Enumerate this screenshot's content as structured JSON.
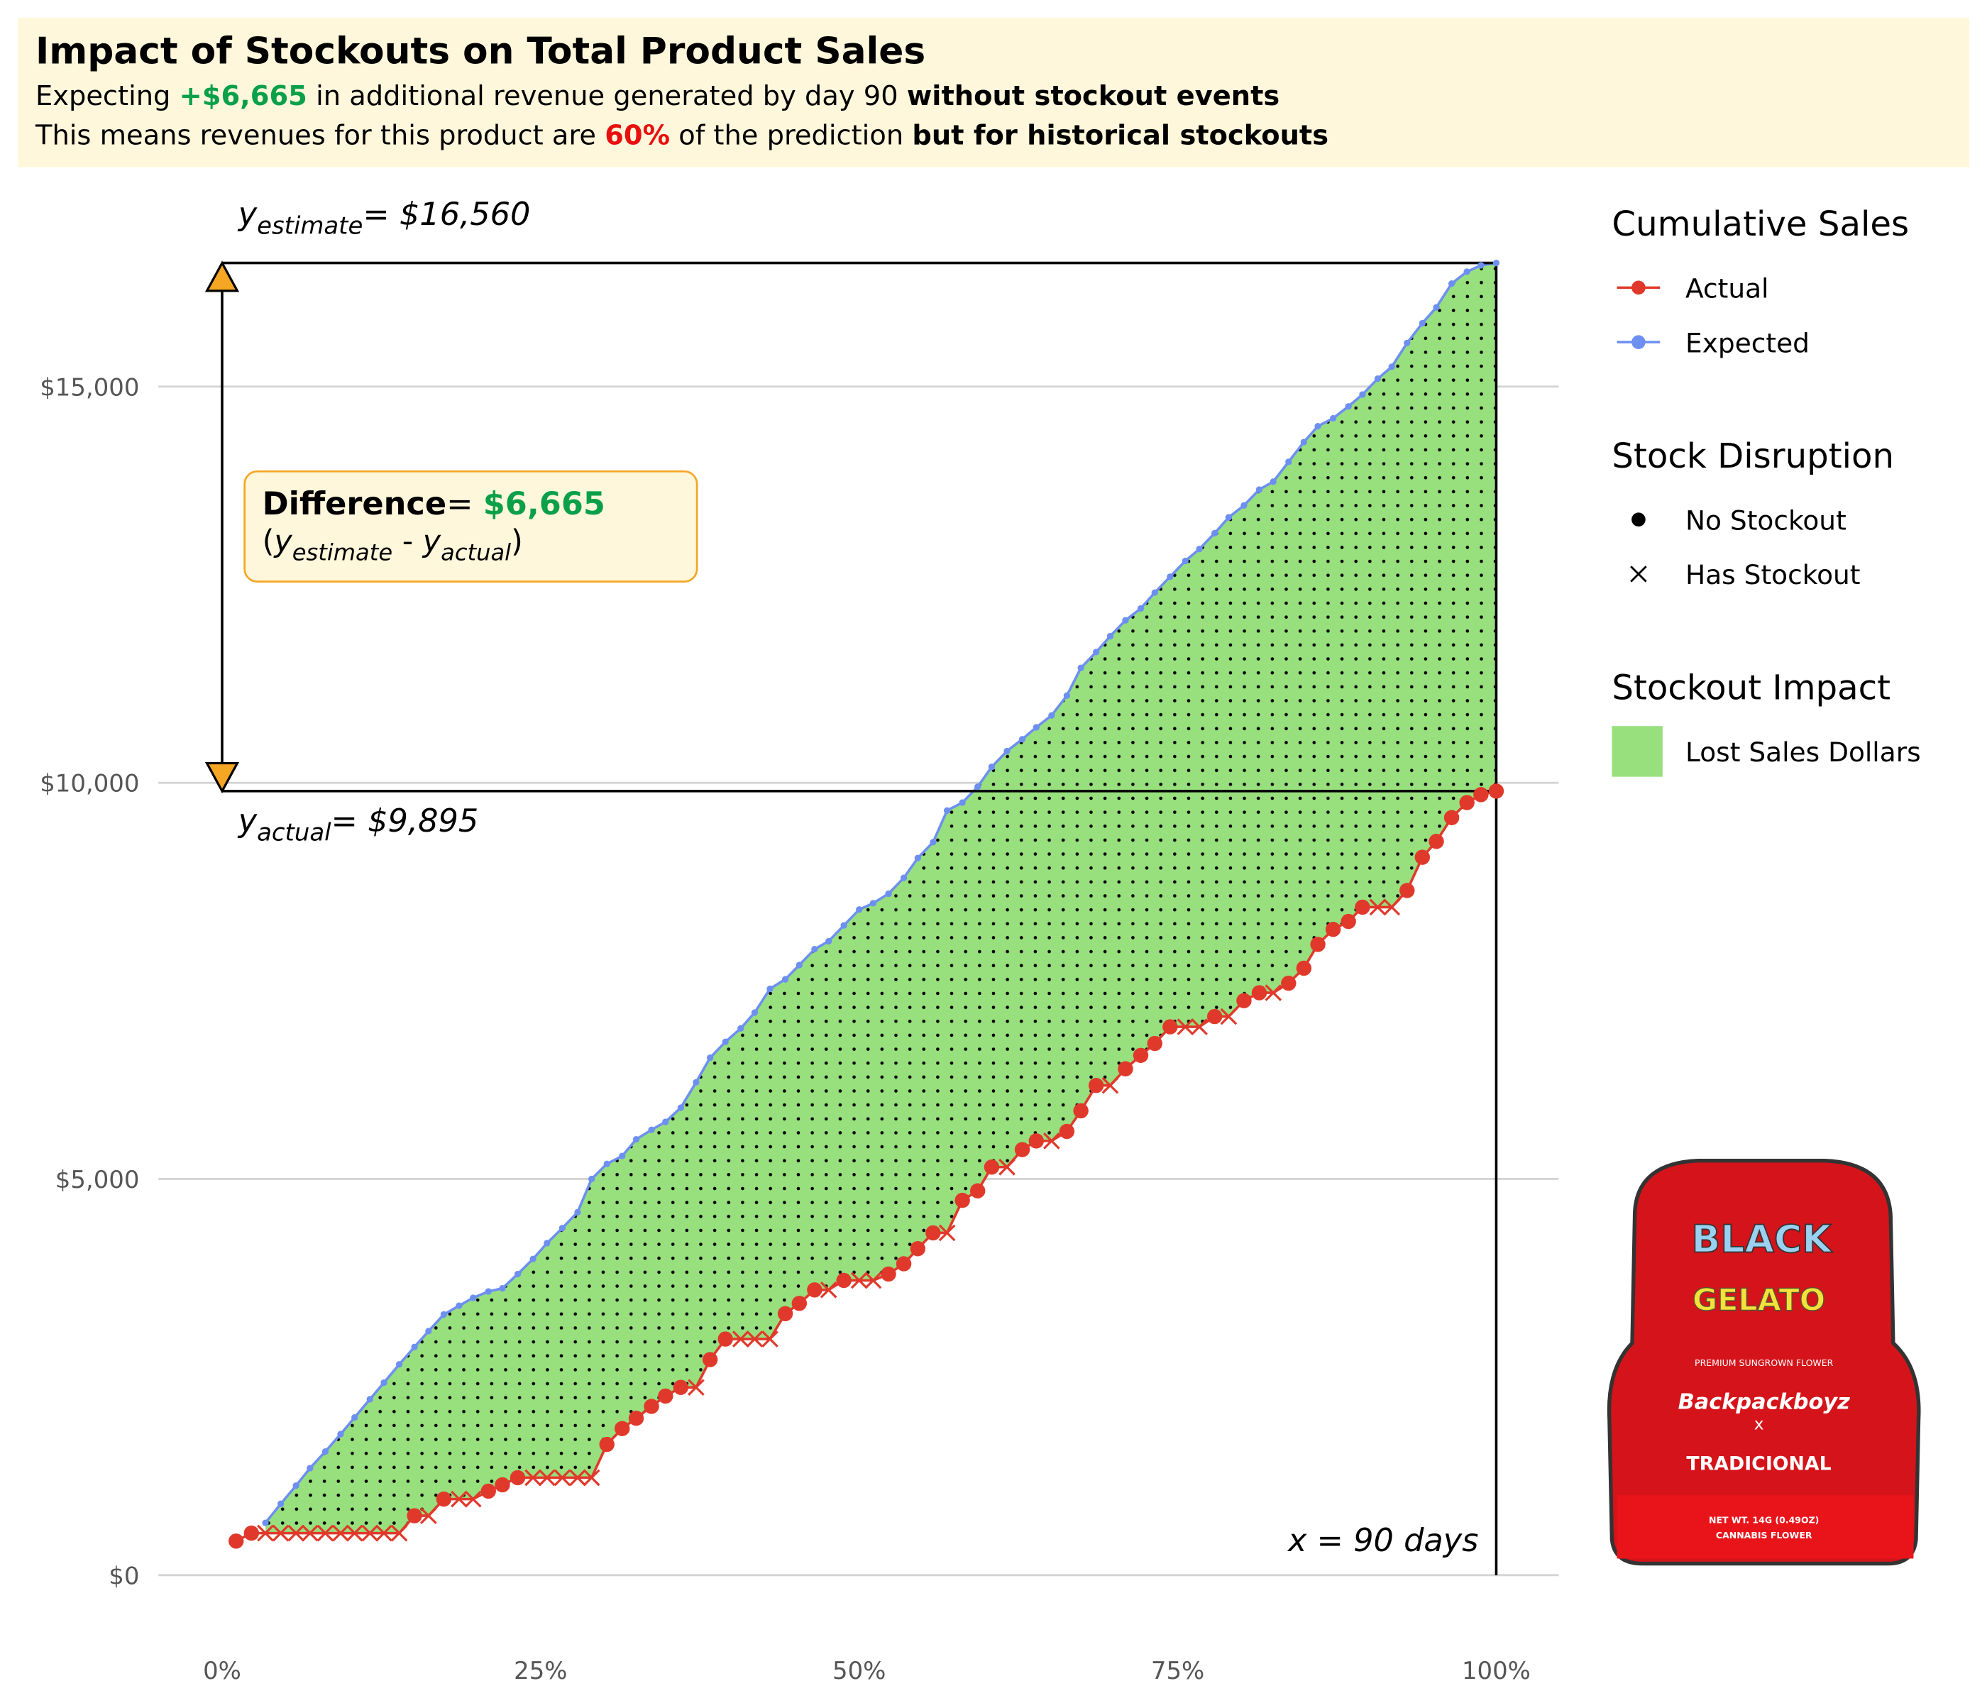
{
  "header": {
    "title": "Impact of Stockouts on Total Product Sales",
    "lines": [
      [
        "Expecting ",
        "+$6,665",
        " in additional revenue generated by day 90 ",
        "without stockout events"
      ],
      [
        "This means revenues for this product are ",
        "60%",
        " of the prediction ",
        "but for historical stockouts"
      ]
    ]
  },
  "chart_data": {
    "type": "line",
    "x": [
      1.1,
      2.3,
      3.4,
      4.6,
      5.8,
      6.9,
      8.1,
      9.3,
      10.4,
      11.6,
      12.7,
      13.9,
      15.1,
      16.2,
      17.4,
      18.6,
      19.7,
      20.9,
      22.0,
      23.2,
      24.4,
      25.5,
      26.7,
      27.9,
      29.0,
      30.2,
      31.4,
      32.5,
      33.7,
      34.8,
      36.0,
      37.2,
      38.3,
      39.5,
      40.7,
      41.8,
      43.0,
      44.2,
      45.3,
      46.5,
      47.6,
      48.8,
      50.0,
      51.1,
      52.3,
      53.5,
      54.6,
      55.8,
      56.9,
      58.1,
      59.3,
      60.4,
      61.6,
      62.8,
      63.9,
      65.1,
      66.3,
      67.4,
      68.6,
      69.7,
      70.9,
      72.1,
      73.2,
      74.4,
      75.6,
      76.7,
      77.9,
      79.0,
      80.2,
      81.4,
      82.5,
      83.7,
      84.9,
      86.0,
      87.2,
      88.4,
      89.5,
      90.7,
      91.8,
      93.0,
      94.2,
      95.3,
      96.5,
      97.7,
      98.8,
      100
    ],
    "series": [
      {
        "name": "Actual",
        "color": "#e0392b",
        "values": [
          430,
          530,
          530,
          530,
          530,
          530,
          530,
          530,
          530,
          530,
          530,
          530,
          750,
          750,
          960,
          960,
          960,
          1060,
          1140,
          1230,
          1230,
          1230,
          1230,
          1230,
          1230,
          1650,
          1850,
          1980,
          2130,
          2260,
          2370,
          2370,
          2720,
          2980,
          2980,
          2980,
          2980,
          3300,
          3430,
          3600,
          3600,
          3720,
          3720,
          3720,
          3800,
          3930,
          4120,
          4320,
          4320,
          4730,
          4850,
          5150,
          5150,
          5370,
          5480,
          5480,
          5600,
          5860,
          6180,
          6180,
          6390,
          6560,
          6710,
          6920,
          6920,
          6920,
          7050,
          7050,
          7250,
          7350,
          7350,
          7470,
          7660,
          7960,
          8150,
          8250,
          8430,
          8430,
          8430,
          8640,
          9060,
          9260,
          9560,
          9750,
          9850,
          9895
        ]
      },
      {
        "name": "Expected",
        "color": "#6d8ff2",
        "values": [
          null,
          null,
          660,
          900,
          1130,
          1350,
          1560,
          1780,
          1990,
          2220,
          2430,
          2660,
          2880,
          3080,
          3290,
          3400,
          3500,
          3580,
          3620,
          3800,
          3990,
          4190,
          4380,
          4580,
          5000,
          5190,
          5290,
          5500,
          5620,
          5720,
          5900,
          6220,
          6530,
          6730,
          6900,
          7100,
          7400,
          7520,
          7700,
          7900,
          8000,
          8200,
          8400,
          8480,
          8600,
          8800,
          9050,
          9250,
          9650,
          9750,
          9950,
          10200,
          10400,
          10550,
          10700,
          10850,
          11100,
          11450,
          11650,
          11850,
          12050,
          12200,
          12400,
          12600,
          12800,
          12950,
          13150,
          13350,
          13500,
          13700,
          13800,
          14050,
          14300,
          14500,
          14600,
          14750,
          14900,
          15100,
          15250,
          15550,
          15800,
          16000,
          16300,
          16450,
          16530,
          16560
        ]
      }
    ],
    "stockout": [
      false,
      false,
      true,
      true,
      true,
      true,
      true,
      true,
      true,
      true,
      true,
      true,
      false,
      true,
      false,
      true,
      true,
      false,
      false,
      false,
      true,
      true,
      true,
      true,
      true,
      false,
      false,
      false,
      false,
      false,
      false,
      true,
      false,
      false,
      true,
      true,
      true,
      false,
      false,
      false,
      true,
      false,
      true,
      true,
      false,
      false,
      false,
      false,
      true,
      false,
      false,
      false,
      true,
      false,
      false,
      true,
      false,
      false,
      false,
      true,
      false,
      false,
      false,
      false,
      true,
      true,
      false,
      true,
      false,
      false,
      true,
      false,
      false,
      false,
      false,
      false,
      false,
      true,
      true,
      false,
      false,
      false,
      false,
      false,
      false,
      false
    ],
    "xlim": [
      -5,
      104.9
    ],
    "xticks": [
      {
        "value": 0,
        "label": "0%"
      },
      {
        "value": 25,
        "label": "25%"
      },
      {
        "value": 50,
        "label": "50%"
      },
      {
        "value": 75,
        "label": "75%"
      },
      {
        "value": 100,
        "label": "100%"
      }
    ],
    "ylim": [
      -750,
      17560
    ],
    "yticks": [
      {
        "value": 0,
        "label": "$0"
      },
      {
        "value": 5000,
        "label": "$5,000"
      },
      {
        "value": 10000,
        "label": "$10,000"
      },
      {
        "value": 15000,
        "label": "$15,000"
      }
    ],
    "grid": true,
    "area": {
      "name": "Lost Sales Dollars",
      "color": "#98e07e"
    },
    "legend": {
      "position": "right",
      "groups": [
        {
          "title": "Cumulative Sales"
        },
        {
          "title": "Stock Disruption",
          "entries": [
            "No Stockout",
            "Has Stockout"
          ]
        },
        {
          "title": "Stockout Impact"
        }
      ]
    },
    "annotations": {
      "estimate": {
        "value": 16560,
        "y": "y",
        "sub": "estimate",
        "text": "= $16,560"
      },
      "actual": {
        "value": 9895,
        "y": "y",
        "sub": "actual",
        "text": "= $9,895"
      },
      "x_line": {
        "value": 100,
        "text": "x = 90 days"
      },
      "difference": {
        "label": "Difference",
        "text": "= ",
        "amount": "$6,665",
        "formula": [
          "(",
          "y",
          "estimate",
          " - ",
          "y",
          "actual",
          ")"
        ]
      }
    }
  },
  "product_image": {
    "texts": [
      "BLACK",
      "GELATO",
      "PREMIUM SUNGROWN FLOWER",
      "Backpackboyz",
      "x",
      "TRADICIONAL",
      "NET WT. 14G (0.49OZ)",
      "CANNABIS FLOWER"
    ]
  }
}
